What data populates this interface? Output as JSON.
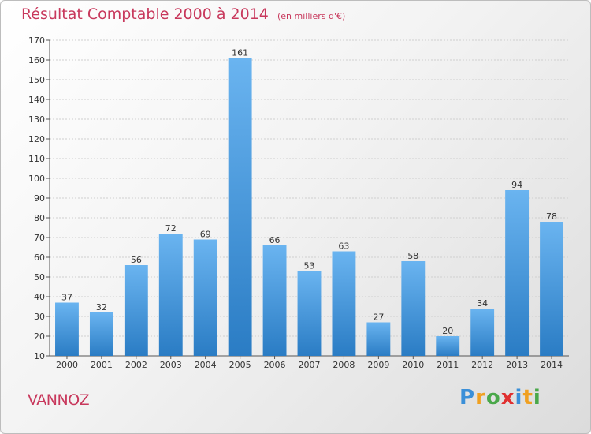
{
  "header": {
    "title": "Résultat Comptable 2000 à 2014",
    "subtitle": "(en milliers d'€)"
  },
  "commune": "VANNOZ",
  "brand": {
    "name": "Proxiti",
    "letters": [
      "P",
      "r",
      "o",
      "x",
      "i",
      "t",
      "i"
    ],
    "colors": [
      "#3a8fd8",
      "#f0a020",
      "#4aa84a",
      "#e03030",
      "#3a8fd8",
      "#f0a020",
      "#4aa84a"
    ]
  },
  "colors": {
    "bar_top": "#6ab4f0",
    "bar_bottom": "#2a7cc4",
    "title": "#c8385c"
  },
  "chart_data": {
    "type": "bar",
    "title": "Résultat Comptable 2000 à 2014",
    "subtitle": "(en milliers d'€)",
    "categories": [
      "2000",
      "2001",
      "2002",
      "2003",
      "2004",
      "2005",
      "2006",
      "2007",
      "2008",
      "2009",
      "2010",
      "2011",
      "2012",
      "2013",
      "2014"
    ],
    "values": [
      37,
      32,
      56,
      72,
      69,
      161,
      66,
      53,
      63,
      27,
      58,
      20,
      34,
      94,
      78
    ],
    "ylim": [
      10,
      170
    ],
    "yticks": [
      10,
      20,
      30,
      40,
      50,
      60,
      70,
      80,
      90,
      100,
      110,
      120,
      130,
      140,
      150,
      160,
      170
    ],
    "xlabel": "",
    "ylabel": "",
    "grid": true
  }
}
